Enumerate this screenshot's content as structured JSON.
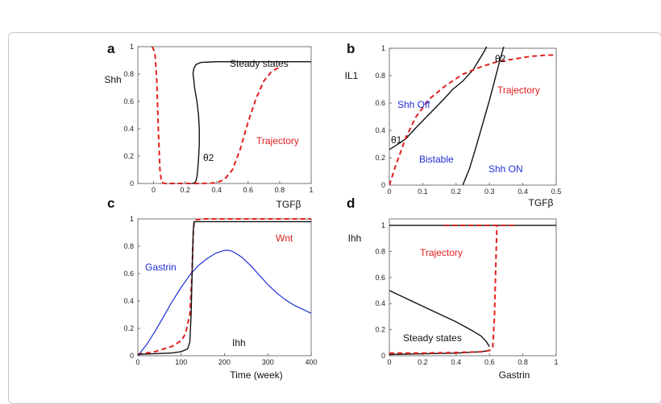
{
  "chart_data": [
    {
      "panel": "a",
      "type": "line",
      "xlabel": "TGFβ",
      "ylabel": "Shh",
      "xlim": [
        -0.1,
        1.0
      ],
      "ylim": [
        0,
        1.0
      ],
      "xticks": [
        "0",
        "0.2",
        "0.4",
        "0.6",
        "0.8",
        "1"
      ],
      "yticks": [
        "0",
        "0.2",
        "0.4",
        "0.6",
        "0.8",
        "1"
      ],
      "annotations": [
        {
          "text": "Steady states",
          "color": "#111111"
        },
        {
          "text": "Trajectory",
          "color": "#e02020"
        },
        {
          "text": "θ2",
          "color": "#111111"
        }
      ],
      "series": [
        {
          "label": "Steady states",
          "color": "#111111",
          "style": "solid",
          "x": [
            0.24,
            0.26,
            0.27,
            0.275,
            0.28,
            0.285,
            0.29,
            0.29,
            0.285,
            0.275,
            0.26,
            0.255,
            0.25,
            0.255,
            0.27,
            0.3,
            0.4,
            0.6,
            0.8,
            1.0
          ],
          "y": [
            0.0,
            0.005,
            0.02,
            0.05,
            0.1,
            0.18,
            0.28,
            0.4,
            0.5,
            0.6,
            0.7,
            0.76,
            0.8,
            0.84,
            0.87,
            0.885,
            0.89,
            0.89,
            0.89,
            0.89
          ]
        },
        {
          "label": "Trajectory",
          "color": "#e02020",
          "style": "dashed",
          "x": [
            -0.01,
            0.0,
            0.01,
            0.02,
            0.03,
            0.04,
            0.05,
            0.07,
            0.1,
            0.2,
            0.3,
            0.4,
            0.45,
            0.5,
            0.55,
            0.6,
            0.65,
            0.7,
            0.75,
            0.8
          ],
          "y": [
            1.0,
            0.98,
            0.93,
            0.75,
            0.4,
            0.1,
            0.01,
            0.0,
            0.0,
            0.0,
            0.0,
            0.005,
            0.03,
            0.1,
            0.25,
            0.45,
            0.62,
            0.75,
            0.82,
            0.85
          ]
        }
      ]
    },
    {
      "panel": "b",
      "type": "line",
      "xlabel": "TGFβ",
      "ylabel": "IL1",
      "xlim": [
        0,
        0.5
      ],
      "ylim": [
        0,
        1.0
      ],
      "xticks": [
        "0",
        "0.1",
        "0.2",
        "0.3",
        "0.4",
        "0.5"
      ],
      "yticks": [
        "0",
        "0.2",
        "0.4",
        "0.6",
        "0.8",
        "1"
      ],
      "annotations": [
        {
          "text": "Shh Off",
          "color": "#1e2fd6"
        },
        {
          "text": "Shh ON",
          "color": "#1e2fd6"
        },
        {
          "text": "Bistable",
          "color": "#1e2fd6"
        },
        {
          "text": "Trajectory",
          "color": "#e02020"
        },
        {
          "text": "θ1",
          "color": "#111111"
        },
        {
          "text": "θ2",
          "color": "#111111"
        }
      ],
      "series": [
        {
          "label": "θ1 boundary",
          "color": "#111111",
          "style": "solid",
          "x": [
            0.0,
            0.02,
            0.05,
            0.08,
            0.12,
            0.16,
            0.19,
            0.22,
            0.25,
            0.27,
            0.285,
            0.295
          ],
          "y": [
            0.26,
            0.29,
            0.34,
            0.42,
            0.52,
            0.62,
            0.7,
            0.76,
            0.84,
            0.92,
            0.98,
            1.03
          ]
        },
        {
          "label": "θ2 boundary",
          "color": "#111111",
          "style": "solid",
          "x": [
            0.22,
            0.24,
            0.26,
            0.28,
            0.3,
            0.315,
            0.33,
            0.345
          ],
          "y": [
            0.0,
            0.12,
            0.28,
            0.45,
            0.62,
            0.76,
            0.9,
            1.03
          ]
        },
        {
          "label": "Trajectory",
          "color": "#e02020",
          "style": "dashed",
          "x": [
            0.0,
            0.02,
            0.05,
            0.08,
            0.12,
            0.17,
            0.22,
            0.27,
            0.32,
            0.37,
            0.42,
            0.47,
            0.5
          ],
          "y": [
            0.0,
            0.15,
            0.35,
            0.5,
            0.63,
            0.73,
            0.81,
            0.86,
            0.9,
            0.92,
            0.94,
            0.95,
            0.95
          ]
        }
      ]
    },
    {
      "panel": "c",
      "type": "line",
      "xlabel": "Time (week)",
      "ylabel": "",
      "xlim": [
        0,
        400
      ],
      "ylim": [
        0,
        1.0
      ],
      "xticks": [
        "0",
        "100",
        "200",
        "300",
        "400"
      ],
      "yticks": [
        "0",
        "0.2",
        "0.4",
        "0.6",
        "0.8",
        "1"
      ],
      "annotations": [
        {
          "text": "Wnt",
          "color": "#e02020"
        },
        {
          "text": "Gastrin",
          "color": "#1e2fd6"
        },
        {
          "text": "Ihh",
          "color": "#111111"
        }
      ],
      "series": [
        {
          "label": "Gastrin",
          "color": "#1e2fd6",
          "style": "solid",
          "x": [
            0,
            20,
            40,
            60,
            80,
            100,
            120,
            140,
            160,
            180,
            200,
            210,
            220,
            240,
            260,
            280,
            300,
            320,
            340,
            360,
            380,
            400
          ],
          "y": [
            0.0,
            0.08,
            0.18,
            0.29,
            0.4,
            0.5,
            0.59,
            0.66,
            0.71,
            0.75,
            0.77,
            0.77,
            0.76,
            0.72,
            0.66,
            0.59,
            0.52,
            0.46,
            0.41,
            0.37,
            0.34,
            0.31
          ]
        },
        {
          "label": "Wnt",
          "color": "#e02020",
          "style": "dashed",
          "x": [
            0,
            20,
            40,
            60,
            80,
            100,
            110,
            120,
            125,
            128,
            130,
            135,
            150,
            200,
            300,
            400
          ],
          "y": [
            0.01,
            0.02,
            0.03,
            0.05,
            0.07,
            0.11,
            0.16,
            0.3,
            0.6,
            0.9,
            0.98,
            0.995,
            1.0,
            1.0,
            1.0,
            1.0
          ]
        },
        {
          "label": "Ihh",
          "color": "#111111",
          "style": "solid",
          "x": [
            0,
            40,
            80,
            100,
            115,
            120,
            123,
            126,
            128,
            130,
            135,
            150,
            200,
            300,
            400
          ],
          "y": [
            0.01,
            0.015,
            0.02,
            0.03,
            0.05,
            0.1,
            0.3,
            0.7,
            0.92,
            0.98,
            0.98,
            0.98,
            0.98,
            0.98,
            0.98
          ]
        }
      ]
    },
    {
      "panel": "d",
      "type": "line",
      "xlabel": "Gastrin",
      "ylabel": "Ihh",
      "xlim": [
        0,
        1.0
      ],
      "ylim": [
        0,
        1.05
      ],
      "xticks": [
        "0",
        "0.2",
        "0.4",
        "0.6",
        "0.8",
        "1"
      ],
      "yticks": [
        "0",
        "0.2",
        "0.4",
        "0.6",
        "0.8",
        "1"
      ],
      "annotations": [
        {
          "text": "Trajectory",
          "color": "#e02020"
        },
        {
          "text": "Steady states",
          "color": "#111111"
        }
      ],
      "series": [
        {
          "label": "Steady states (upper)",
          "color": "#111111",
          "style": "solid",
          "x": [
            0.0,
            1.0
          ],
          "y": [
            1.0,
            1.0
          ]
        },
        {
          "label": "Steady states (middle)",
          "color": "#111111",
          "style": "solid",
          "x": [
            0.0,
            0.1,
            0.2,
            0.3,
            0.4,
            0.5,
            0.55,
            0.58,
            0.6
          ],
          "y": [
            0.5,
            0.44,
            0.38,
            0.32,
            0.26,
            0.19,
            0.15,
            0.11,
            0.07
          ]
        },
        {
          "label": "Steady states (lower)",
          "color": "#111111",
          "style": "solid",
          "x": [
            0.0,
            0.2,
            0.4,
            0.55,
            0.6
          ],
          "y": [
            0.01,
            0.015,
            0.02,
            0.03,
            0.04
          ]
        },
        {
          "label": "Trajectory",
          "color": "#e02020",
          "style": "dashed",
          "x": [
            0.0,
            0.2,
            0.4,
            0.55,
            0.6,
            0.62,
            0.63,
            0.64,
            0.645,
            0.65
          ],
          "y": [
            0.02,
            0.02,
            0.025,
            0.03,
            0.04,
            0.06,
            0.3,
            0.8,
            1.0,
            1.0
          ]
        },
        {
          "label": "Trajectory (upper)",
          "color": "#e02020",
          "style": "dashed",
          "x": [
            0.33,
            0.76
          ],
          "y": [
            1.0,
            1.0
          ]
        }
      ]
    }
  ]
}
